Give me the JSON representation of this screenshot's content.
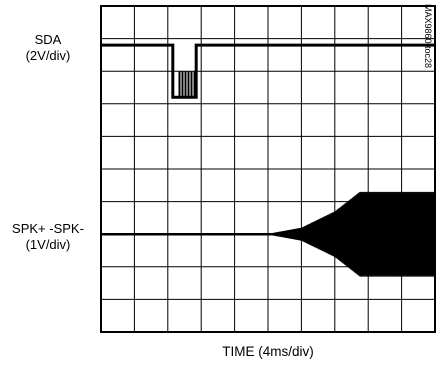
{
  "chart_data": {
    "type": "line",
    "figure_id": "MAX9860 toc28",
    "xlabel": "TIME (4ms/div)",
    "grid": true,
    "divisions": {
      "x": 10,
      "y": 10
    },
    "xlim": [
      0,
      40
    ],
    "series": [
      {
        "name_line1": "SDA",
        "name_line2": "(2V/div)",
        "baseline_div": 8.8,
        "low_div": 7.2,
        "pulse_start_ms": 8.6,
        "pulse_end_ms": 11.4,
        "burst_start_ms": 9.4,
        "burst_end_ms": 11.2
      },
      {
        "name_line1": "SPK+ -SPK-",
        "name_line2": "(1V/div)",
        "center_div": 3.0,
        "rise_start_ms": 20.4,
        "rise_end_ms": 31.0,
        "final_amplitude_div": 1.3,
        "y_values_div": [
          [
            0,
            0
          ],
          [
            20.4,
            0.03
          ],
          [
            24,
            0.2
          ],
          [
            28,
            0.7
          ],
          [
            31,
            1.3
          ],
          [
            40,
            1.3
          ]
        ]
      }
    ]
  }
}
